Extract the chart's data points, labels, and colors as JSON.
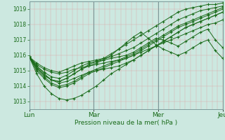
{
  "title": "",
  "xlabel": "Pression niveau de la mer( hPa )",
  "ylabel": "",
  "ylim": [
    1012.5,
    1019.5
  ],
  "xlim": [
    0,
    72
  ],
  "yticks": [
    1013,
    1014,
    1015,
    1016,
    1017,
    1018,
    1019
  ],
  "xtick_positions": [
    0,
    24,
    48,
    72
  ],
  "xtick_labels": [
    "Lun",
    "Mar",
    "Mer",
    "Jeu"
  ],
  "vline_positions": [
    0,
    24,
    48,
    72
  ],
  "background_color": "#cce8e0",
  "plot_bg_color": "#cce8e0",
  "line_color": "#1a6b1a",
  "marker": "+",
  "figsize": [
    3.2,
    2.0
  ],
  "dpi": 100,
  "lines": [
    [
      1015.9,
      1015.5,
      1015.2,
      1015.0,
      1014.9,
      1015.1,
      1015.3,
      1015.5,
      1015.6,
      1015.7,
      1015.8,
      1015.9,
      1016.1,
      1016.3,
      1016.5,
      1016.8,
      1017.1,
      1017.4,
      1017.7,
      1018.0,
      1018.3,
      1018.5,
      1018.7,
      1018.9,
      1019.0,
      1019.1,
      1019.2
    ],
    [
      1015.9,
      1015.3,
      1014.8,
      1014.4,
      1014.2,
      1014.3,
      1014.5,
      1014.7,
      1014.9,
      1015.0,
      1015.1,
      1015.2,
      1015.3,
      1015.5,
      1015.7,
      1016.0,
      1016.3,
      1016.6,
      1016.9,
      1017.2,
      1017.5,
      1017.8,
      1018.0,
      1018.2,
      1018.4,
      1018.6,
      1018.8
    ],
    [
      1015.9,
      1015.4,
      1015.1,
      1014.9,
      1014.8,
      1014.9,
      1015.1,
      1015.2,
      1015.3,
      1015.4,
      1015.5,
      1015.6,
      1015.7,
      1015.8,
      1016.0,
      1016.2,
      1016.4,
      1016.6,
      1016.8,
      1017.0,
      1017.2,
      1017.4,
      1017.6,
      1017.8,
      1018.0,
      1018.1,
      1018.3
    ],
    [
      1015.9,
      1015.0,
      1014.5,
      1014.1,
      1013.9,
      1014.0,
      1014.2,
      1014.5,
      1014.8,
      1015.0,
      1015.2,
      1015.4,
      1015.6,
      1015.8,
      1016.0,
      1016.3,
      1016.6,
      1016.9,
      1017.2,
      1017.5,
      1017.8,
      1018.0,
      1018.2,
      1018.4,
      1018.6,
      1018.8,
      1019.0
    ],
    [
      1015.9,
      1015.1,
      1014.6,
      1014.2,
      1014.0,
      1014.1,
      1014.3,
      1014.6,
      1014.9,
      1015.1,
      1015.3,
      1015.5,
      1015.7,
      1015.9,
      1016.1,
      1016.4,
      1016.7,
      1017.0,
      1017.3,
      1017.6,
      1017.9,
      1018.1,
      1018.3,
      1018.5,
      1018.7,
      1018.9,
      1019.1
    ],
    [
      1015.9,
      1014.8,
      1014.0,
      1013.5,
      1013.2,
      1013.1,
      1013.2,
      1013.4,
      1013.7,
      1014.0,
      1014.4,
      1014.8,
      1015.1,
      1015.4,
      1015.7,
      1016.0,
      1016.3,
      1016.6,
      1016.9,
      1017.2,
      1017.5,
      1017.8,
      1018.0,
      1018.2,
      1018.4,
      1018.6,
      1018.8
    ],
    [
      1015.9,
      1015.2,
      1014.7,
      1014.4,
      1014.3,
      1014.5,
      1014.8,
      1015.1,
      1015.3,
      1015.5,
      1015.7,
      1016.0,
      1016.4,
      1016.8,
      1017.2,
      1017.5,
      1017.1,
      1016.7,
      1016.4,
      1016.2,
      1016.0,
      1016.2,
      1016.5,
      1016.8,
      1017.0,
      1016.3,
      1015.8
    ],
    [
      1015.9,
      1015.3,
      1014.9,
      1014.6,
      1014.5,
      1014.7,
      1015.0,
      1015.3,
      1015.5,
      1015.6,
      1015.7,
      1015.8,
      1015.9,
      1016.0,
      1016.2,
      1016.5,
      1016.8,
      1017.1,
      1017.0,
      1016.8,
      1016.6,
      1016.9,
      1017.2,
      1017.5,
      1017.7,
      1017.0,
      1016.5
    ],
    [
      1015.9,
      1015.2,
      1014.7,
      1014.4,
      1014.3,
      1014.5,
      1014.8,
      1015.1,
      1015.4,
      1015.6,
      1015.8,
      1016.1,
      1016.4,
      1016.7,
      1017.0,
      1017.3,
      1017.6,
      1017.9,
      1018.2,
      1018.5,
      1018.8,
      1019.0,
      1019.1,
      1019.2,
      1019.3,
      1019.3,
      1019.4
    ]
  ]
}
